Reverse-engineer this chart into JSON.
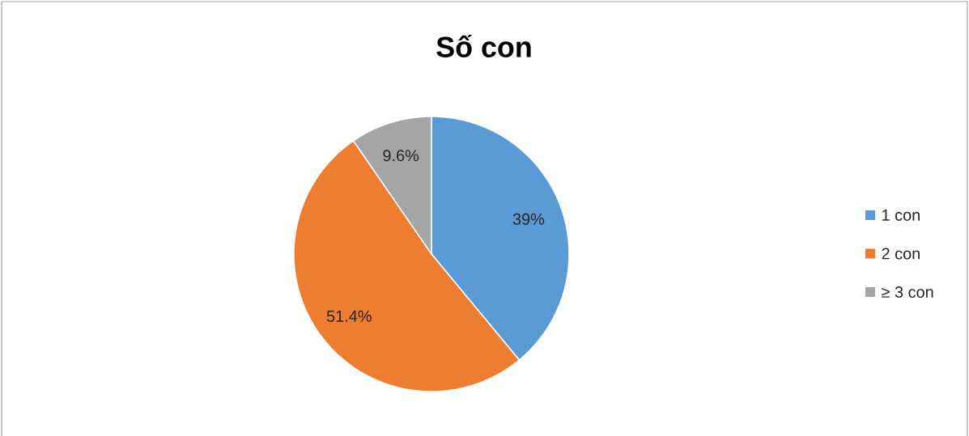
{
  "chart_data": {
    "type": "pie",
    "title": "Số con",
    "categories": [
      "1 con",
      "2 con",
      "≥ 3 con"
    ],
    "values": [
      39,
      51.4,
      9.6
    ],
    "colors": [
      "#5b9bd5",
      "#ed7d31",
      "#a5a5a5"
    ],
    "value_labels": [
      "39%",
      "51.4%",
      "9.6%"
    ],
    "legend": "right"
  }
}
